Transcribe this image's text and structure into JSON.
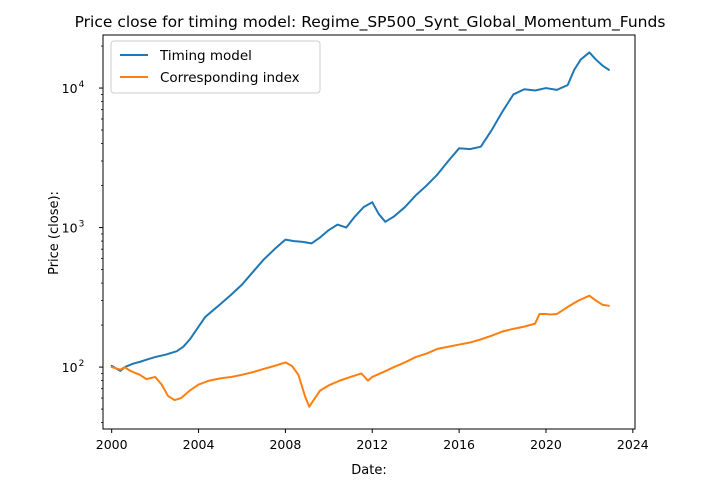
{
  "chart_data": {
    "type": "line",
    "title": "Price close for timing model: Regime_SP500_Synt_Global_Momentum_Funds",
    "xlabel": "Date:",
    "ylabel": "Price (close):",
    "yscale": "log",
    "xlim": [
      1999.6,
      2024.1
    ],
    "ylim": [
      36,
      24000
    ],
    "x_ticks": [
      {
        "value": 2000,
        "label": "2000"
      },
      {
        "value": 2004,
        "label": "2004"
      },
      {
        "value": 2008,
        "label": "2008"
      },
      {
        "value": 2012,
        "label": "2012"
      },
      {
        "value": 2016,
        "label": "2016"
      },
      {
        "value": 2020,
        "label": "2020"
      },
      {
        "value": 2024,
        "label": "2024"
      }
    ],
    "y_ticks": [
      {
        "value": 100,
        "base": "10",
        "exp": "2"
      },
      {
        "value": 1000,
        "base": "10",
        "exp": "3"
      },
      {
        "value": 10000,
        "base": "10",
        "exp": "4"
      }
    ],
    "legend_position": "upper-left",
    "series": [
      {
        "name": "Timing model",
        "color": "#1f77b4",
        "x": [
          2000.0,
          2000.2,
          2000.4,
          2000.6,
          2000.8,
          2001.0,
          2001.3,
          2001.6,
          2002.0,
          2002.5,
          2003.0,
          2003.3,
          2003.6,
          2004.0,
          2004.3,
          2004.6,
          2005.0,
          2005.5,
          2006.0,
          2006.5,
          2007.0,
          2007.5,
          2008.0,
          2008.4,
          2008.8,
          2009.2,
          2009.6,
          2010.0,
          2010.4,
          2010.8,
          2011.2,
          2011.6,
          2012.0,
          2012.3,
          2012.6,
          2013.0,
          2013.5,
          2014.0,
          2014.5,
          2015.0,
          2015.5,
          2016.0,
          2016.5,
          2017.0,
          2017.5,
          2018.0,
          2018.5,
          2019.0,
          2019.5,
          2020.0,
          2020.5,
          2021.0,
          2021.3,
          2021.6,
          2022.0,
          2022.3,
          2022.6,
          2022.9
        ],
        "values": [
          102,
          98,
          94,
          100,
          103,
          106,
          109,
          113,
          118,
          123,
          130,
          140,
          158,
          195,
          228,
          250,
          282,
          330,
          390,
          480,
          590,
          700,
          820,
          800,
          790,
          770,
          850,
          960,
          1050,
          1000,
          1200,
          1400,
          1520,
          1250,
          1100,
          1200,
          1400,
          1700,
          2000,
          2400,
          3000,
          3700,
          3650,
          3800,
          5000,
          6800,
          9000,
          9800,
          9600,
          10000,
          9700,
          10500,
          13500,
          16000,
          18000,
          16000,
          14500,
          13500
        ]
      },
      {
        "name": "Corresponding index",
        "color": "#ff7f0e",
        "x": [
          2000.0,
          2000.2,
          2000.4,
          2000.6,
          2000.8,
          2001.0,
          2001.3,
          2001.6,
          2002.0,
          2002.3,
          2002.6,
          2002.9,
          2003.2,
          2003.6,
          2004.0,
          2004.5,
          2005.0,
          2005.5,
          2006.0,
          2006.5,
          2007.0,
          2007.5,
          2008.0,
          2008.3,
          2008.6,
          2008.9,
          2009.1,
          2009.3,
          2009.6,
          2010.0,
          2010.5,
          2011.0,
          2011.5,
          2011.8,
          2012.0,
          2012.5,
          2013.0,
          2013.5,
          2014.0,
          2014.5,
          2015.0,
          2015.5,
          2016.0,
          2016.5,
          2017.0,
          2017.5,
          2018.0,
          2018.5,
          2019.0,
          2019.5,
          2019.7,
          2020.0,
          2020.2,
          2020.5,
          2021.0,
          2021.5,
          2022.0,
          2022.3,
          2022.6,
          2022.9
        ],
        "values": [
          100,
          98,
          96,
          100,
          95,
          92,
          88,
          82,
          85,
          75,
          62,
          58,
          60,
          68,
          75,
          80,
          83,
          85,
          88,
          92,
          97,
          102,
          108,
          102,
          88,
          62,
          52,
          58,
          68,
          74,
          80,
          85,
          90,
          80,
          85,
          92,
          100,
          108,
          118,
          125,
          135,
          140,
          145,
          150,
          158,
          168,
          180,
          188,
          195,
          205,
          240,
          240,
          238,
          240,
          270,
          300,
          325,
          300,
          280,
          275
        ]
      }
    ]
  }
}
